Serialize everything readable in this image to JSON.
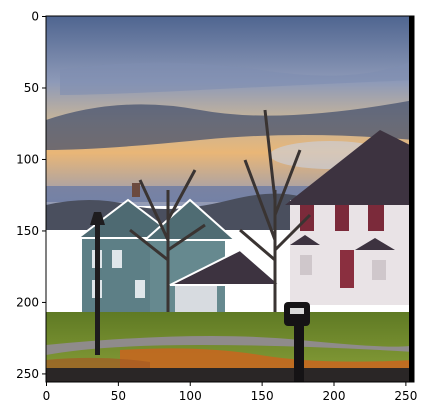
{
  "figure": {
    "image_description_colors": {
      "sky_top": "#5b6f9a",
      "sky_mid": "#9aa6bf",
      "horizon_glow": "#e7b77a",
      "cloud_dark": "#3b4866",
      "grass": "#6f8a2a",
      "autumn_leaves": "#d36b1c",
      "house_left": "#5d7f86",
      "house_right": "#e9e3e6",
      "roof_dark": "#3d3340",
      "road": "#8f8b8b"
    },
    "axes": {
      "x_ticks": [
        "0",
        "50",
        "100",
        "150",
        "200",
        "250"
      ],
      "y_ticks": [
        "0",
        "50",
        "100",
        "150",
        "200",
        "250"
      ],
      "x_range": [
        0,
        256
      ],
      "y_range": [
        0,
        256
      ]
    }
  }
}
